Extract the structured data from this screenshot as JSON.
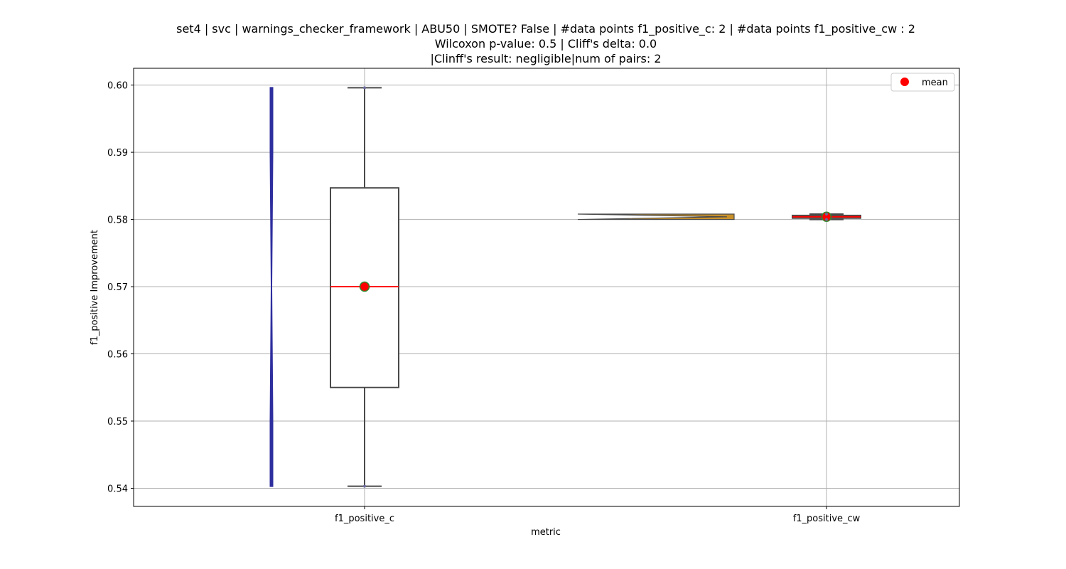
{
  "chart_data": {
    "type": "box",
    "title_lines": [
      "set4 | svc | warnings_checker_framework | ABU50 | SMOTE? False | #data points f1_positive_c: 2 | #data points f1_positive_cw : 2",
      "Wilcoxon p-value: 0.5 | Cliff's delta: 0.0",
      "|Clinff's result: negligible|num of pairs: 2"
    ],
    "xlabel": "metric",
    "ylabel": "f1_positive Improvement",
    "categories": [
      "f1_positive_c",
      "f1_positive_cw"
    ],
    "ylim": [
      0.5373,
      0.6025
    ],
    "yticks": [
      "0.54",
      "0.55",
      "0.56",
      "0.57",
      "0.58",
      "0.59",
      "0.60"
    ],
    "grid": true,
    "legend": {
      "placement": "top-right",
      "entries": [
        "mean"
      ]
    },
    "series": [
      {
        "category": "f1_positive_c",
        "points": [
          0.5403,
          0.5996
        ],
        "box": {
          "whisker_low": 0.5403,
          "q1": 0.555,
          "median": 0.57,
          "q3": 0.5847,
          "whisker_high": 0.5996
        },
        "mean": 0.57,
        "violin_color": "#2e2e9e"
      },
      {
        "category": "f1_positive_cw",
        "points": [
          0.58,
          0.5808
        ],
        "box": {
          "whisker_low": 0.58,
          "q1": 0.5802,
          "median": 0.5804,
          "q3": 0.5806,
          "whisker_high": 0.5808
        },
        "mean": 0.5804,
        "violin_color": "#c8902a"
      }
    ],
    "colors": {
      "box_edge": "#4a4a4a",
      "median": "#ff0000",
      "mean_fill": "#ff0000",
      "mean_edge": "#2e8b2e",
      "grid": "#b0b0b0"
    }
  }
}
